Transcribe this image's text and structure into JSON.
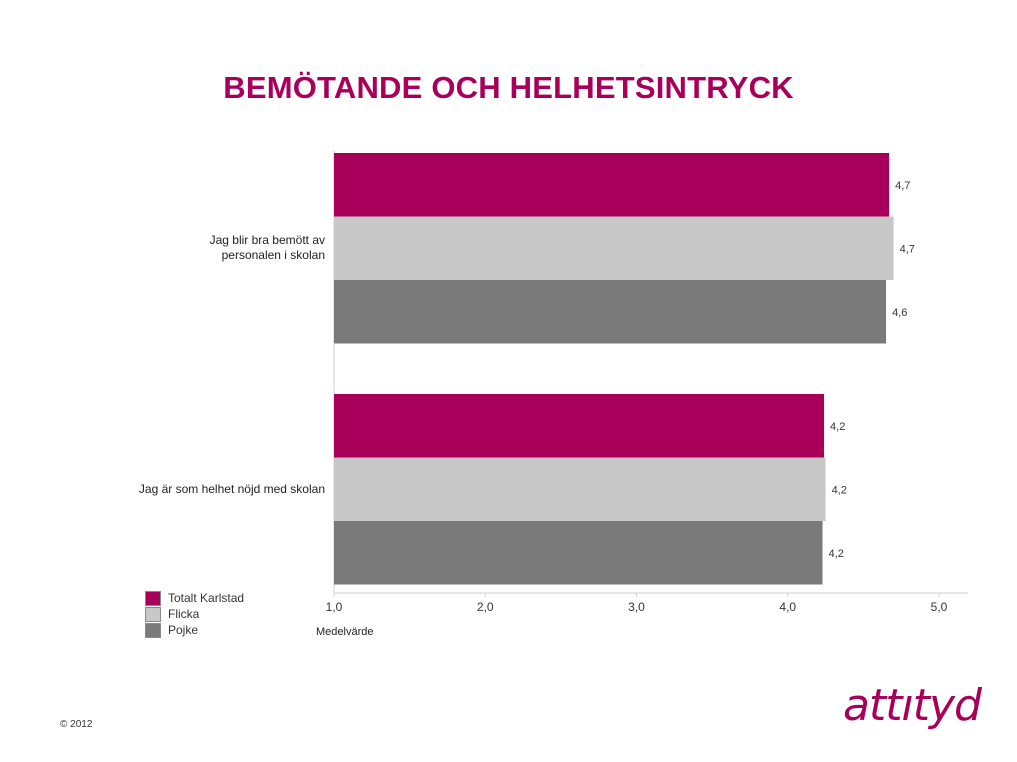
{
  "title": "BEMÖTANDE OCH HELHETSINTRYCK",
  "copyright": "© 2012",
  "logo_text": "attıtyd",
  "colors": {
    "title": "#a8005a",
    "totalt": "#a8005a",
    "flicka": "#c8c8c8",
    "pojke": "#7a7a7a"
  },
  "chart_data": {
    "type": "bar",
    "orientation": "horizontal",
    "categories": [
      "Jag blir bra bemött av personalen i skolan",
      "Jag är som helhet nöjd med skolan"
    ],
    "category_labels": [
      [
        "Jag blir bra bemött av",
        "personalen i skolan"
      ],
      [
        "Jag är som helhet nöjd med skolan"
      ]
    ],
    "series": [
      {
        "name": "Totalt Karlstad",
        "color": "#a8005a",
        "values": [
          4.67,
          4.24
        ],
        "labels": [
          "4,7",
          "4,2"
        ]
      },
      {
        "name": "Flicka",
        "color": "#c8c8c8",
        "values": [
          4.7,
          4.25
        ],
        "labels": [
          "4,7",
          "4,2"
        ]
      },
      {
        "name": "Pojke",
        "color": "#7a7a7a",
        "values": [
          4.65,
          4.23
        ],
        "labels": [
          "4,6",
          "4,2"
        ]
      }
    ],
    "xlabel": "Medelvärde",
    "xlim": [
      1.0,
      5.0
    ],
    "xticks": [
      1.0,
      2.0,
      3.0,
      4.0,
      5.0
    ],
    "xtick_labels": [
      "1,0",
      "2,0",
      "3,0",
      "4,0",
      "5,0"
    ],
    "legend": [
      "Totalt Karlstad",
      "Flicka",
      "Pojke"
    ],
    "legend_position": "bottom-left",
    "grid": false
  }
}
